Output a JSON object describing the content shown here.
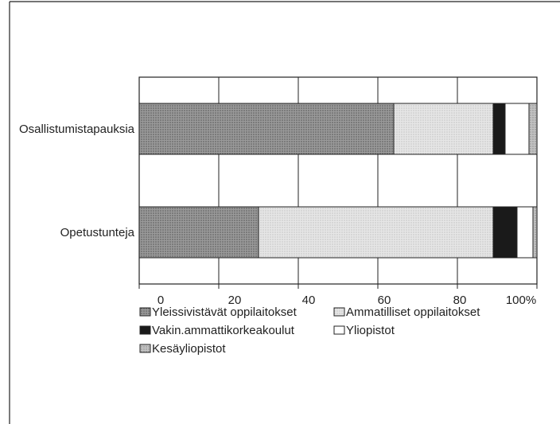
{
  "chart_data": {
    "type": "bar",
    "orientation": "horizontal",
    "stacked": true,
    "categories": [
      "Osallistumistapauksia",
      "Opetustunteja"
    ],
    "x_ticks": [
      "0",
      "20",
      "40",
      "60",
      "80",
      "100%"
    ],
    "xlim": [
      0,
      100
    ],
    "grid": true,
    "legend_position": "bottom",
    "series": [
      {
        "name": "Yleissivistävät oppilaitokset",
        "values": [
          64,
          30
        ],
        "color": "#8f8f8f",
        "pattern": "dots-dark"
      },
      {
        "name": "Ammatilliset oppilaitokset",
        "values": [
          25,
          59
        ],
        "color": "#d8d8d8",
        "pattern": "dots-light"
      },
      {
        "name": "Vakin.ammattikorkeakoulut",
        "values": [
          3,
          6
        ],
        "color": "#1a1a1a",
        "pattern": "solid"
      },
      {
        "name": "Yliopistot",
        "values": [
          6,
          4
        ],
        "color": "#ffffff",
        "pattern": "none"
      },
      {
        "name": "Kesäyliopistot",
        "values": [
          2,
          1
        ],
        "color": "#b4b4b4",
        "pattern": "dots-mid"
      }
    ]
  }
}
